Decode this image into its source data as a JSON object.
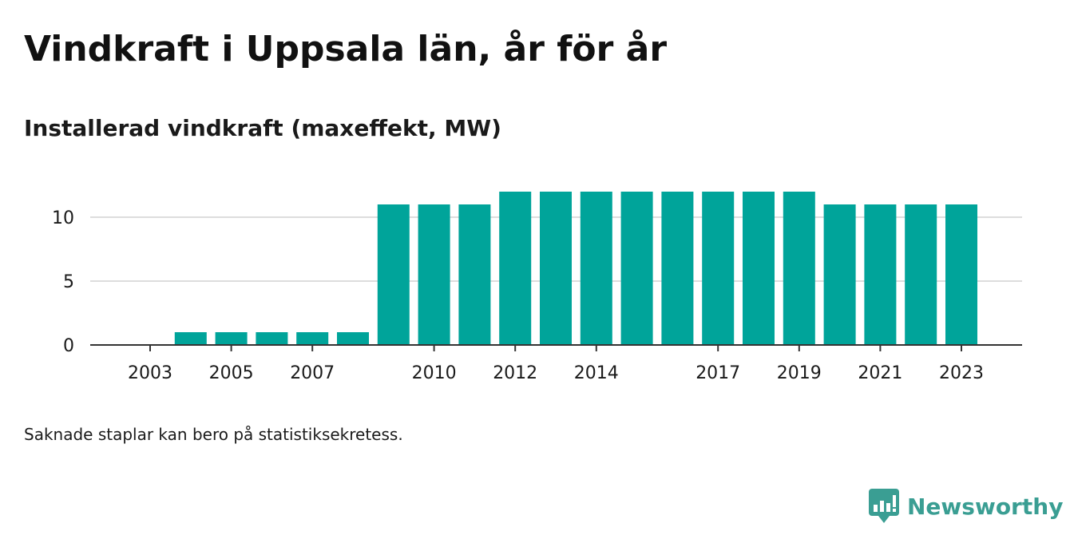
{
  "title": "Vindkraft i Uppsala län, år för år",
  "subtitle": "Installerad vindkraft (maxeffekt, MW)",
  "footnote": "Saknade staplar kan bero på statistiksekretess.",
  "brand": {
    "name": "Newsworthy",
    "color": "#3a9e93",
    "icon": "newsworthy-logo-icon"
  },
  "colors": {
    "bar": "#00a49a",
    "grid": "#dddddd",
    "axis": "#333333",
    "text": "#1a1a1a"
  },
  "chart_data": {
    "type": "bar",
    "categories": [
      "2003",
      "2004",
      "2005",
      "2006",
      "2007",
      "2008",
      "2009",
      "2010",
      "2011",
      "2012",
      "2013",
      "2014",
      "2015",
      "2016",
      "2017",
      "2018",
      "2019",
      "2020",
      "2021",
      "2022",
      "2023"
    ],
    "values": [
      0,
      1,
      1,
      1,
      1,
      1,
      11,
      11,
      11,
      12,
      12,
      12,
      12,
      12,
      12,
      12,
      12,
      11,
      11,
      11,
      11
    ],
    "x_tick_labels": [
      "2003",
      "2005",
      "2007",
      "2010",
      "2012",
      "2014",
      "2017",
      "2019",
      "2021",
      "2023"
    ],
    "y_ticks": [
      0,
      5,
      10
    ],
    "ylim": [
      0,
      12
    ],
    "xlabel": "",
    "ylabel": "",
    "grid": true,
    "legend": "none"
  }
}
